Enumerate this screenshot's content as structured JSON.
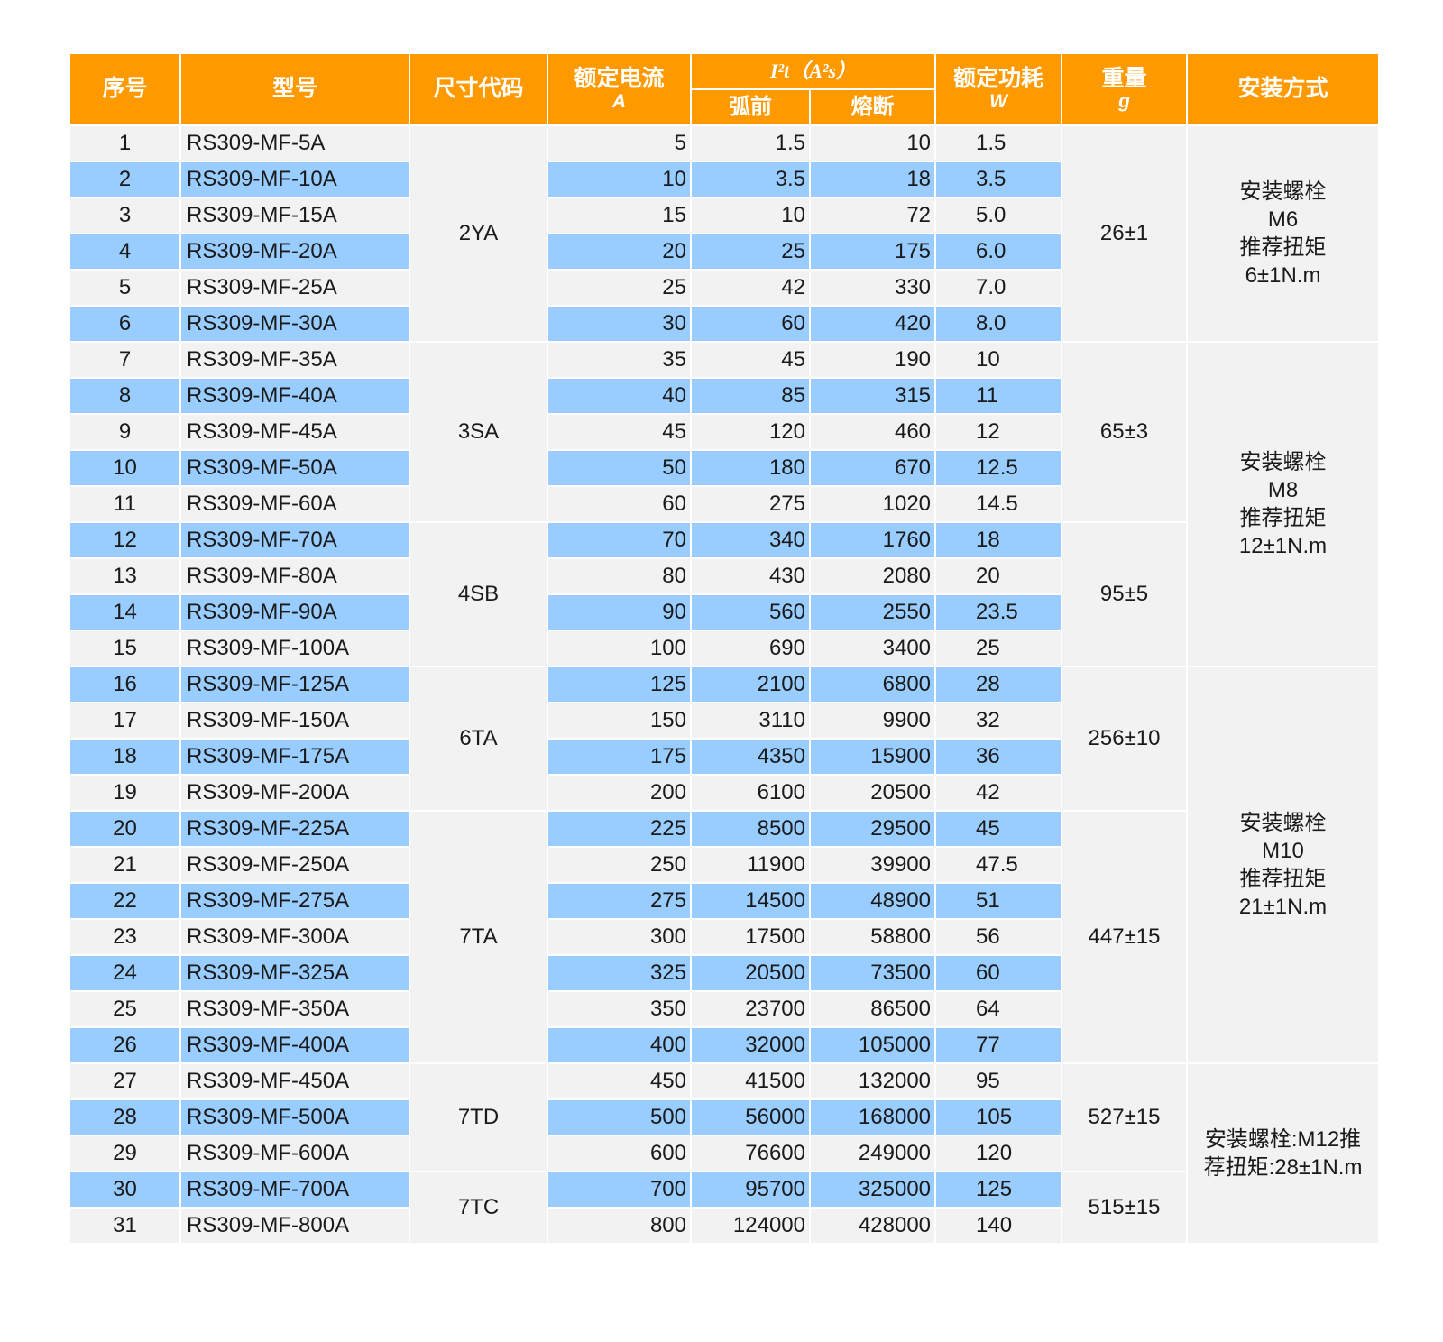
{
  "header": {
    "no": "序号",
    "model": "型号",
    "size": "尺寸代码",
    "current": "额定电流",
    "current_unit": "A",
    "i2t": "I²t（A²s）",
    "prearc": "弧前",
    "clearing": "熔断",
    "power": "额定功耗",
    "power_unit": "W",
    "weight": "重量",
    "weight_unit": "g",
    "mounting": "安装方式"
  },
  "rows": [
    {
      "no": "1",
      "model": "RS309-MF-5A",
      "current": "5",
      "prearc": "1.5",
      "clearing": "10",
      "power": "1.5"
    },
    {
      "no": "2",
      "model": "RS309-MF-10A",
      "current": "10",
      "prearc": "3.5",
      "clearing": "18",
      "power": "3.5"
    },
    {
      "no": "3",
      "model": "RS309-MF-15A",
      "current": "15",
      "prearc": "10",
      "clearing": "72",
      "power": "5.0"
    },
    {
      "no": "4",
      "model": "RS309-MF-20A",
      "current": "20",
      "prearc": "25",
      "clearing": "175",
      "power": "6.0"
    },
    {
      "no": "5",
      "model": "RS309-MF-25A",
      "current": "25",
      "prearc": "42",
      "clearing": "330",
      "power": "7.0"
    },
    {
      "no": "6",
      "model": "RS309-MF-30A",
      "current": "30",
      "prearc": "60",
      "clearing": "420",
      "power": "8.0"
    },
    {
      "no": "7",
      "model": "RS309-MF-35A",
      "current": "35",
      "prearc": "45",
      "clearing": "190",
      "power": "10"
    },
    {
      "no": "8",
      "model": "RS309-MF-40A",
      "current": "40",
      "prearc": "85",
      "clearing": "315",
      "power": "11"
    },
    {
      "no": "9",
      "model": "RS309-MF-45A",
      "current": "45",
      "prearc": "120",
      "clearing": "460",
      "power": "12"
    },
    {
      "no": "10",
      "model": "RS309-MF-50A",
      "current": "50",
      "prearc": "180",
      "clearing": "670",
      "power": "12.5"
    },
    {
      "no": "11",
      "model": "RS309-MF-60A",
      "current": "60",
      "prearc": "275",
      "clearing": "1020",
      "power": "14.5"
    },
    {
      "no": "12",
      "model": "RS309-MF-70A",
      "current": "70",
      "prearc": "340",
      "clearing": "1760",
      "power": "18"
    },
    {
      "no": "13",
      "model": "RS309-MF-80A",
      "current": "80",
      "prearc": "430",
      "clearing": "2080",
      "power": "20"
    },
    {
      "no": "14",
      "model": "RS309-MF-90A",
      "current": "90",
      "prearc": "560",
      "clearing": "2550",
      "power": "23.5"
    },
    {
      "no": "15",
      "model": "RS309-MF-100A",
      "current": "100",
      "prearc": "690",
      "clearing": "3400",
      "power": "25"
    },
    {
      "no": "16",
      "model": "RS309-MF-125A",
      "current": "125",
      "prearc": "2100",
      "clearing": "6800",
      "power": "28"
    },
    {
      "no": "17",
      "model": "RS309-MF-150A",
      "current": "150",
      "prearc": "3110",
      "clearing": "9900",
      "power": "32"
    },
    {
      "no": "18",
      "model": "RS309-MF-175A",
      "current": "175",
      "prearc": "4350",
      "clearing": "15900",
      "power": "36"
    },
    {
      "no": "19",
      "model": "RS309-MF-200A",
      "current": "200",
      "prearc": "6100",
      "clearing": "20500",
      "power": "42"
    },
    {
      "no": "20",
      "model": "RS309-MF-225A",
      "current": "225",
      "prearc": "8500",
      "clearing": "29500",
      "power": "45"
    },
    {
      "no": "21",
      "model": "RS309-MF-250A",
      "current": "250",
      "prearc": "11900",
      "clearing": "39900",
      "power": "47.5"
    },
    {
      "no": "22",
      "model": "RS309-MF-275A",
      "current": "275",
      "prearc": "14500",
      "clearing": "48900",
      "power": "51"
    },
    {
      "no": "23",
      "model": "RS309-MF-300A",
      "current": "300",
      "prearc": "17500",
      "clearing": "58800",
      "power": "56"
    },
    {
      "no": "24",
      "model": "RS309-MF-325A",
      "current": "325",
      "prearc": "20500",
      "clearing": "73500",
      "power": "60"
    },
    {
      "no": "25",
      "model": "RS309-MF-350A",
      "current": "350",
      "prearc": "23700",
      "clearing": "86500",
      "power": "64"
    },
    {
      "no": "26",
      "model": "RS309-MF-400A",
      "current": "400",
      "prearc": "32000",
      "clearing": "105000",
      "power": "77"
    },
    {
      "no": "27",
      "model": "RS309-MF-450A",
      "current": "450",
      "prearc": "41500",
      "clearing": "132000",
      "power": "95"
    },
    {
      "no": "28",
      "model": "RS309-MF-500A",
      "current": "500",
      "prearc": "56000",
      "clearing": "168000",
      "power": "105"
    },
    {
      "no": "29",
      "model": "RS309-MF-600A",
      "current": "600",
      "prearc": "76600",
      "clearing": "249000",
      "power": "120"
    },
    {
      "no": "30",
      "model": "RS309-MF-700A",
      "current": "700",
      "prearc": "95700",
      "clearing": "325000",
      "power": "125"
    },
    {
      "no": "31",
      "model": "RS309-MF-800A",
      "current": "800",
      "prearc": "124000",
      "clearing": "428000",
      "power": "140"
    }
  ],
  "size_groups": [
    {
      "code": "2YA",
      "start": 0,
      "span": 6
    },
    {
      "code": "3SA",
      "start": 6,
      "span": 5
    },
    {
      "code": "4SB",
      "start": 11,
      "span": 4
    },
    {
      "code": "6TA",
      "start": 15,
      "span": 4
    },
    {
      "code": "7TA",
      "start": 19,
      "span": 7
    },
    {
      "code": "7TD",
      "start": 26,
      "span": 3
    },
    {
      "code": "7TC",
      "start": 29,
      "span": 2
    }
  ],
  "weight_groups": [
    {
      "value": "26±1",
      "start": 0,
      "span": 6
    },
    {
      "value": "65±3",
      "start": 6,
      "span": 5
    },
    {
      "value": "95±5",
      "start": 11,
      "span": 4
    },
    {
      "value": "256±10",
      "start": 15,
      "span": 4
    },
    {
      "value": "447±15",
      "start": 19,
      "span": 7
    },
    {
      "value": "527±15",
      "start": 26,
      "span": 3
    },
    {
      "value": "515±15",
      "start": 29,
      "span": 2
    }
  ],
  "mount_groups": [
    {
      "lines": [
        "安装螺栓",
        "M6",
        "推荐扭矩",
        "6±1N.m"
      ],
      "start": 0,
      "span": 6
    },
    {
      "lines": [
        "安装螺栓",
        "M8",
        "推荐扭矩",
        "12±1N.m"
      ],
      "start": 6,
      "span": 9
    },
    {
      "lines": [
        "安装螺栓",
        "M10",
        "推荐扭矩",
        "21±1N.m"
      ],
      "start": 15,
      "span": 11
    },
    {
      "lines": [
        "安装螺栓:M12推",
        "荐扭矩:28±1N.m"
      ],
      "start": 26,
      "span": 5
    }
  ],
  "colors": {
    "header_bg": "#ff9900",
    "row_light": "#f2f2f2",
    "row_blue": "#99ccff"
  }
}
